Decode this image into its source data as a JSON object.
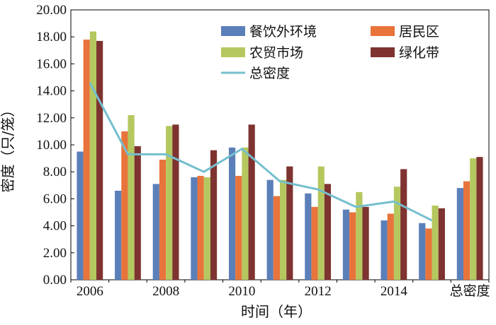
{
  "chart_data": {
    "type": "bar",
    "title": "",
    "xlabel": "时间（年）",
    "ylabel": "密度（只/笼）",
    "ylim": [
      0,
      20
    ],
    "yticks": [
      "0.00",
      "2.00",
      "4.00",
      "6.00",
      "8.00",
      "10.00",
      "12.00",
      "14.00",
      "16.00",
      "18.00",
      "20.00"
    ],
    "grid": false,
    "legend_position": "top-right",
    "categories": [
      "2006",
      "2007",
      "2008",
      "2009",
      "2010",
      "2011",
      "2012",
      "2013",
      "2014",
      "2015",
      "总密度"
    ],
    "x_tick_labels": [
      {
        "label": "2006",
        "category_index": 0
      },
      {
        "label": "2008",
        "category_index": 2
      },
      {
        "label": "2010",
        "category_index": 4
      },
      {
        "label": "2012",
        "category_index": 6
      },
      {
        "label": "2014",
        "category_index": 8
      },
      {
        "label": "总密度",
        "category_index": 10
      }
    ],
    "series": [
      {
        "name": "餐饮外环境",
        "color": "#5B7FB9",
        "values": [
          9.5,
          6.6,
          7.1,
          7.6,
          9.8,
          7.4,
          6.4,
          5.2,
          4.4,
          4.2,
          6.8
        ]
      },
      {
        "name": "居民区",
        "color": "#E8743B",
        "values": [
          17.8,
          11.0,
          8.9,
          7.7,
          7.7,
          6.2,
          5.4,
          5.0,
          4.9,
          3.8,
          7.3
        ]
      },
      {
        "name": "农贸市场",
        "color": "#B5C85F",
        "values": [
          18.4,
          12.2,
          11.4,
          7.6,
          9.8,
          7.4,
          8.4,
          6.5,
          6.9,
          5.5,
          9.0
        ]
      },
      {
        "name": "绿化带",
        "color": "#7E3330",
        "values": [
          17.7,
          9.9,
          11.5,
          9.6,
          11.5,
          8.4,
          7.1,
          5.4,
          8.2,
          5.3,
          9.1
        ]
      }
    ],
    "line": {
      "name": "总密度",
      "color": "#74BFCE",
      "values": [
        14.6,
        9.3,
        9.3,
        8.0,
        9.7,
        7.3,
        6.7,
        5.4,
        5.8,
        4.4
      ]
    }
  }
}
